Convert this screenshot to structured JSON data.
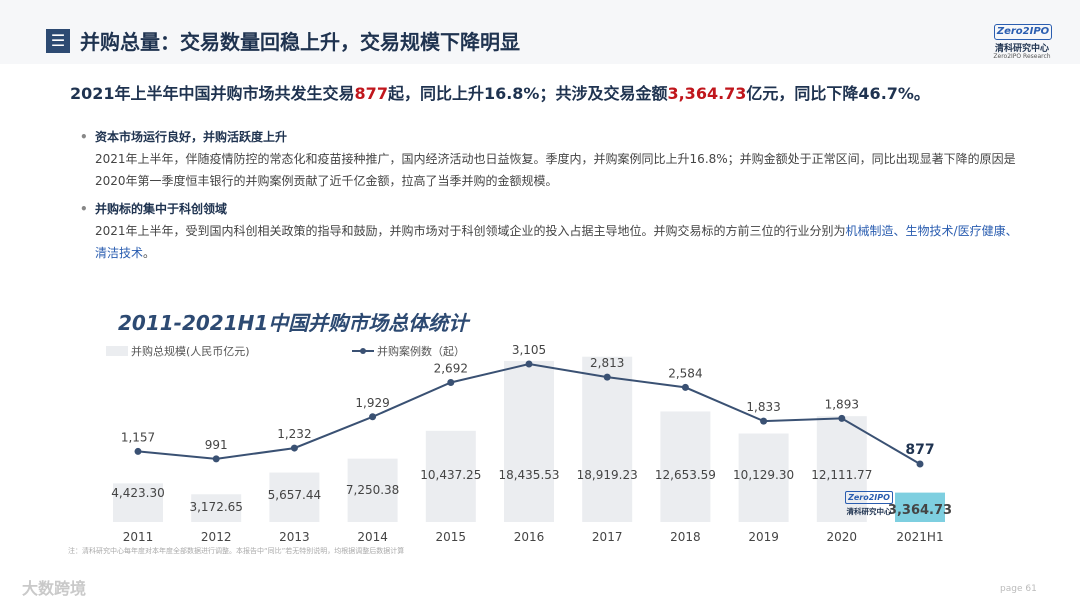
{
  "header": {
    "icon_glyph": "☰",
    "title": "并购总量：交易数量回稳上升，交易规模下降明显",
    "logo_badge": "Zero2IPO",
    "logo_cn": "清科研究中心",
    "logo_en": "Zero2IPO Research"
  },
  "headline": {
    "part1": "2021年上半年中国并购市场共发生交易",
    "count": "877",
    "part2": "起，同比上升16.8%；共涉及交易金额",
    "amount": "3,364.73",
    "part3": "亿元，同比下降46.7%。"
  },
  "sections": [
    {
      "title": "资本市场运行良好，并购活跃度上升",
      "text": "2021年上半年，伴随疫情防控的常态化和疫苗接种推广，国内经济活动也日益恢复。季度内，并购案例同比上升16.8%；并购金额处于正常区间，同比出现显著下降的原因是2020年第一季度恒丰银行的并购案例贡献了近千亿金额，拉高了当季并购的金额规模。"
    },
    {
      "title": "并购标的集中于科创领域",
      "text_plain": "2021年上半年，受到国内科创相关政策的指导和鼓励，并购市场对于科创领域企业的投入占据主导地位。并购交易标的方前三位的行业分别为",
      "text_highlight": "机械制造、生物技术/医疗健康、清洁技术",
      "text_end": "。"
    }
  ],
  "chart_title": "2011-2021H1中国并购市场总体统计",
  "chart_data": {
    "type": "bar",
    "categories": [
      "2011",
      "2012",
      "2013",
      "2014",
      "2015",
      "2016",
      "2017",
      "2018",
      "2019",
      "2020",
      "2021H1"
    ],
    "series": [
      {
        "name": "并购总规模(人民币亿元)",
        "type": "bar",
        "values": [
          4423.3,
          3172.65,
          5657.44,
          7250.38,
          10437.25,
          18435.53,
          18919.23,
          12653.59,
          10129.3,
          12111.77,
          3364.73
        ],
        "labels": [
          "4,423.30",
          "3,172.65",
          "5,657.44",
          "7,250.38",
          "10,437.25",
          "18,435.53",
          "18,919.23",
          "12,653.59",
          "10,129.30",
          "12,111.77",
          "3,364.73"
        ]
      },
      {
        "name": "并购案例数（起）",
        "type": "line",
        "values": [
          1157,
          991,
          1232,
          1929,
          2692,
          3105,
          2813,
          2584,
          1833,
          1893,
          877
        ],
        "labels": [
          "1,157",
          "991",
          "1,232",
          "1,929",
          "2,692",
          "3,105",
          "2,813",
          "2,584",
          "1,833",
          "1,893",
          "877"
        ]
      }
    ],
    "legend_position": "top-left",
    "grid": false,
    "colors": {
      "bar": "#ebedf0",
      "bar_highlight": "#7ecfe0",
      "line": "#3a5173",
      "label_highlight": "#1f3350"
    }
  },
  "stamp": {
    "badge": "Zero2IPO",
    "cn": "清科研究中心"
  },
  "footnote": "注：清科研究中心每年度对本年度全部数据进行调整。本报告中“同比”若无特别说明，均根据调整后数据计算",
  "brand": "大数跨境",
  "page": "page 61"
}
